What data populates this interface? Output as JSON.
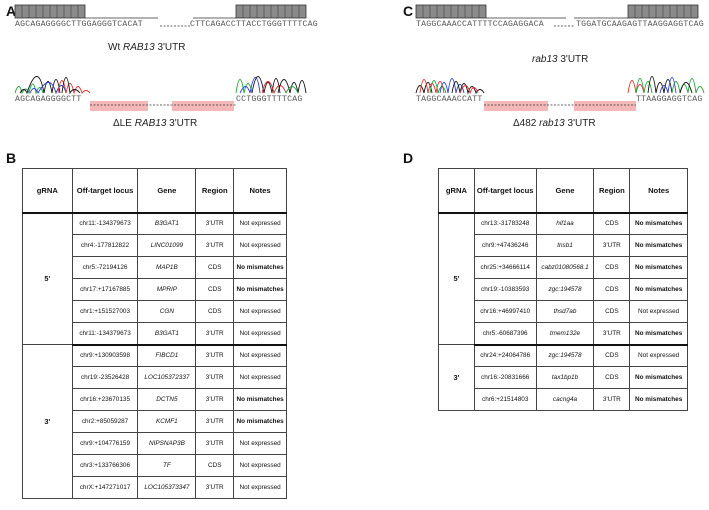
{
  "panels": {
    "A": {
      "label": "A",
      "wt_seq_left": "AGCAGAGGGGCTTGGAGGGTCACAT",
      "wt_seq_right": "CTTCAGACCTTACCTGGGTTTTCAG",
      "wt_caption_prefix": "Wt ",
      "wt_caption_gene": "RAB13",
      "wt_caption_suffix": " 3'UTR",
      "del_seq_left": "AGCAGAGGGGCTT",
      "del_seq_right": "CCTGGGTTTTCAG",
      "del_caption_prefix": "ΔLE ",
      "del_caption_gene": "RAB13",
      "del_caption_suffix": " 3'UTR"
    },
    "B": {
      "label": "B",
      "headers": [
        "gRNA",
        "Off-target locus",
        "Gene",
        "Region",
        "Notes"
      ],
      "groups": [
        {
          "grna": "5'",
          "rows": [
            {
              "locus": "chr11:-134379673",
              "gene": "B3GAT1",
              "region": "3'UTR",
              "notes": "Not expressed",
              "bold": false
            },
            {
              "locus": "chr4:-177812822",
              "gene": "LINC01099",
              "region": "3'UTR",
              "notes": "Not expressed",
              "bold": false
            },
            {
              "locus": "chr5:-72194126",
              "gene": "MAP1B",
              "region": "CDS",
              "notes": "No mismatches",
              "bold": true
            },
            {
              "locus": "chr17:+17167885",
              "gene": "MPRIP",
              "region": "CDS",
              "notes": "No mismatches",
              "bold": true
            },
            {
              "locus": "chr1:+151527003",
              "gene": "CGN",
              "region": "CDS",
              "notes": "Not expressed",
              "bold": false
            },
            {
              "locus": "chr11:-134379673",
              "gene": "B3GAT1",
              "region": "3'UTR",
              "notes": "Not expressed",
              "bold": false
            }
          ]
        },
        {
          "grna": "3'",
          "rows": [
            {
              "locus": "chr9:+130903598",
              "gene": "FIBCD1",
              "region": "3'UTR",
              "notes": "Not expressed",
              "bold": false
            },
            {
              "locus": "chr19:-23526428",
              "gene": "LOC105372337",
              "region": "3'UTR",
              "notes": "Not expressed",
              "bold": false
            },
            {
              "locus": "chr16:+23670135",
              "gene": "DCTN5",
              "region": "3'UTR",
              "notes": "No mismatches",
              "bold": true
            },
            {
              "locus": "chr2:+85059287",
              "gene": "KCMF1",
              "region": "3'UTR",
              "notes": "No mismatches",
              "bold": true
            },
            {
              "locus": "chr9:+104776159",
              "gene": "NIPSNAP3B",
              "region": "3'UTR",
              "notes": "Not expressed",
              "bold": false
            },
            {
              "locus": "chr3:+133766306",
              "gene": "TF",
              "region": "CDS",
              "notes": "Not expressed",
              "bold": false
            },
            {
              "locus": "chrX:+147271017",
              "gene": "LOC105373347",
              "region": "3'UTR",
              "notes": "Not expressed",
              "bold": false
            }
          ]
        }
      ]
    },
    "C": {
      "label": "C",
      "wt_seq_left": "TAGGCAAACCATTTTCCAGAGGACA",
      "wt_seq_right": "TGGATGCAAGAGTTAAGGAGGTCAG",
      "wt_caption_gene": "rab13",
      "wt_caption_suffix": " 3'UTR",
      "del_seq_left": "TAGGCAAACCATT",
      "del_seq_right": "TTAAGGAGGTCAG",
      "del_caption_prefix": "Δ482 ",
      "del_caption_gene": "rab13",
      "del_caption_suffix": " 3'UTR"
    },
    "D": {
      "label": "D",
      "headers": [
        "gRNA",
        "Off-target locus",
        "Gene",
        "Region",
        "Notes"
      ],
      "groups": [
        {
          "grna": "5'",
          "rows": [
            {
              "locus": "chr13:-31783248",
              "gene": "hif1aa",
              "region": "CDS",
              "notes": "No mismatches",
              "bold": true
            },
            {
              "locus": "chr9:+47436246",
              "gene": "tnsb1",
              "region": "3'UTR",
              "notes": "No mismatches",
              "bold": true
            },
            {
              "locus": "chr25:+34666114",
              "gene": "cabz01080568.1",
              "region": "CDS",
              "notes": "No mismatches",
              "bold": true
            },
            {
              "locus": "chr19:-10383593",
              "gene": "zgc:194578",
              "region": "CDS",
              "notes": "No mismatches",
              "bold": true
            },
            {
              "locus": "chr16:+46997410",
              "gene": "thsd7ab",
              "region": "CDS",
              "notes": "Not expressed",
              "bold": false
            },
            {
              "locus": "chr5:-60687396",
              "gene": "tmem132e",
              "region": "3'UTR",
              "notes": "No mismatches",
              "bold": true
            }
          ]
        },
        {
          "grna": "3'",
          "rows": [
            {
              "locus": "chr24:+24064786",
              "gene": "zgc:194578",
              "region": "CDS",
              "notes": "Not expressed",
              "bold": false
            },
            {
              "locus": "chr16:-20831666",
              "gene": "tax1bp1b",
              "region": "CDS",
              "notes": "No mismatches",
              "bold": true
            },
            {
              "locus": "chr6:+21514803",
              "gene": "cacng4a",
              "region": "3'UTR",
              "notes": "No mismatches",
              "bold": true
            }
          ]
        }
      ]
    }
  },
  "colors": {
    "trace_green": "#22a33a",
    "trace_blue": "#2b3fd6",
    "trace_black": "#111111",
    "trace_red": "#e03030",
    "deletion_fill": "#f4b8b8",
    "box_fill": "#8a8a8a"
  }
}
